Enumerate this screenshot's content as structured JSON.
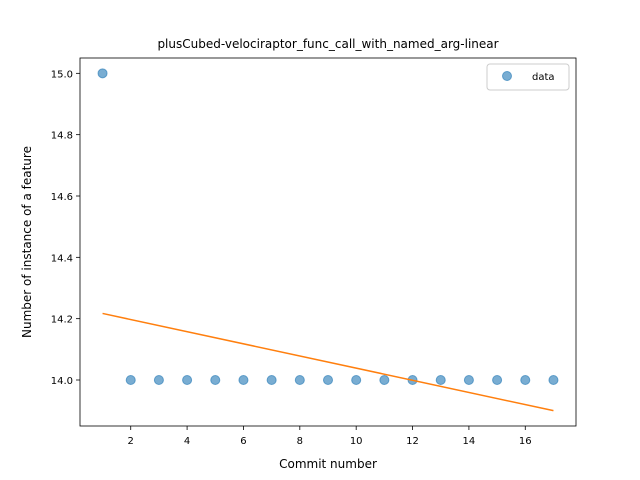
{
  "chart_data": {
    "type": "scatter",
    "title": "plusCubed-velociraptor_func_call_with_named_arg-linear",
    "xlabel": "Commit number",
    "ylabel": "Number of instance of a feature",
    "xlim": [
      0.2,
      17.8
    ],
    "ylim": [
      13.85,
      15.05
    ],
    "xticks": [
      2,
      4,
      6,
      8,
      10,
      12,
      14,
      16
    ],
    "yticks": [
      14.0,
      14.2,
      14.4,
      14.6,
      14.8,
      15.0
    ],
    "xtick_labels": [
      "2",
      "4",
      "6",
      "8",
      "10",
      "12",
      "14",
      "16"
    ],
    "ytick_labels": [
      "14.0",
      "14.2",
      "14.4",
      "14.6",
      "14.8",
      "15.0"
    ],
    "grid": false,
    "legend_position": "top-right",
    "series": [
      {
        "name": "data",
        "kind": "scatter",
        "color": "#1f77b4",
        "x": [
          1,
          2,
          3,
          4,
          5,
          6,
          7,
          8,
          9,
          10,
          11,
          12,
          13,
          14,
          15,
          16,
          17
        ],
        "y": [
          15.0,
          14.0,
          14.0,
          14.0,
          14.0,
          14.0,
          14.0,
          14.0,
          14.0,
          14.0,
          14.0,
          14.0,
          14.0,
          14.0,
          14.0,
          14.0,
          14.0
        ]
      },
      {
        "kind": "line",
        "color": "#ff7f0e",
        "x": [
          1,
          17
        ],
        "y": [
          14.217,
          13.9
        ]
      }
    ]
  }
}
